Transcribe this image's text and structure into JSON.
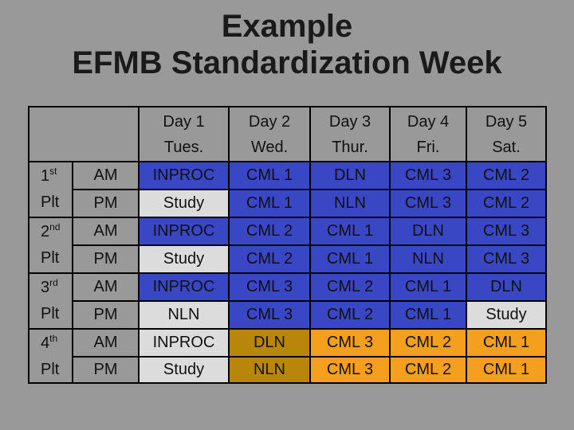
{
  "title": {
    "line1": "Example",
    "line2": "EFMB Standardization Week"
  },
  "colors": {
    "background": "#999999",
    "header": "#999999",
    "blue": "#3a47c4",
    "gray": "#dcdcdc",
    "orange": "#f59f1f",
    "brown": "#b8860b"
  },
  "days": [
    {
      "line1": "Day 1",
      "line2": "Tues."
    },
    {
      "line1": "Day 2",
      "line2": "Wed."
    },
    {
      "line1": "Day 3",
      "line2": "Thur."
    },
    {
      "line1": "Day 4",
      "line2": "Fri."
    },
    {
      "line1": "Day 5",
      "line2": "Sat."
    }
  ],
  "platoons": [
    {
      "num": "1",
      "sup": "st",
      "plt": "Plt",
      "rows": [
        {
          "period": "AM",
          "cells": [
            {
              "text": "INPROC",
              "color": "blue"
            },
            {
              "text": "CML 1",
              "color": "blue"
            },
            {
              "text": "DLN",
              "color": "blue"
            },
            {
              "text": "CML 3",
              "color": "blue"
            },
            {
              "text": "CML 2",
              "color": "blue"
            }
          ]
        },
        {
          "period": "PM",
          "cells": [
            {
              "text": "Study",
              "color": "gray"
            },
            {
              "text": "CML 1",
              "color": "blue"
            },
            {
              "text": "NLN",
              "color": "blue"
            },
            {
              "text": "CML 3",
              "color": "blue"
            },
            {
              "text": "CML 2",
              "color": "blue"
            }
          ]
        }
      ]
    },
    {
      "num": "2",
      "sup": "nd",
      "plt": "Plt",
      "rows": [
        {
          "period": "AM",
          "cells": [
            {
              "text": "INPROC",
              "color": "blue"
            },
            {
              "text": "CML 2",
              "color": "blue"
            },
            {
              "text": "CML 1",
              "color": "blue"
            },
            {
              "text": "DLN",
              "color": "blue"
            },
            {
              "text": "CML 3",
              "color": "blue"
            }
          ]
        },
        {
          "period": "PM",
          "cells": [
            {
              "text": "Study",
              "color": "gray"
            },
            {
              "text": "CML 2",
              "color": "blue"
            },
            {
              "text": "CML 1",
              "color": "blue"
            },
            {
              "text": "NLN",
              "color": "blue"
            },
            {
              "text": "CML 3",
              "color": "blue"
            }
          ]
        }
      ]
    },
    {
      "num": "3",
      "sup": "rd",
      "plt": "Plt",
      "rows": [
        {
          "period": "AM",
          "cells": [
            {
              "text": "INPROC",
              "color": "blue"
            },
            {
              "text": "CML 3",
              "color": "blue"
            },
            {
              "text": "CML 2",
              "color": "blue"
            },
            {
              "text": "CML 1",
              "color": "blue"
            },
            {
              "text": "DLN",
              "color": "blue"
            }
          ]
        },
        {
          "period": "PM",
          "cells": [
            {
              "text": "NLN",
              "color": "gray"
            },
            {
              "text": "CML 3",
              "color": "blue"
            },
            {
              "text": "CML 2",
              "color": "blue"
            },
            {
              "text": "CML 1",
              "color": "blue"
            },
            {
              "text": "Study",
              "color": "gray"
            }
          ]
        }
      ]
    },
    {
      "num": "4",
      "sup": "th",
      "plt": "Plt",
      "rows": [
        {
          "period": "AM",
          "cells": [
            {
              "text": "INPROC",
              "color": "gray"
            },
            {
              "text": "DLN",
              "color": "brown"
            },
            {
              "text": "CML 3",
              "color": "orange"
            },
            {
              "text": "CML 2",
              "color": "orange"
            },
            {
              "text": "CML 1",
              "color": "orange"
            }
          ]
        },
        {
          "period": "PM",
          "cells": [
            {
              "text": "Study",
              "color": "gray"
            },
            {
              "text": "NLN",
              "color": "brown"
            },
            {
              "text": "CML 3",
              "color": "orange"
            },
            {
              "text": "CML 2",
              "color": "orange"
            },
            {
              "text": "CML 1",
              "color": "orange"
            }
          ]
        }
      ]
    }
  ]
}
